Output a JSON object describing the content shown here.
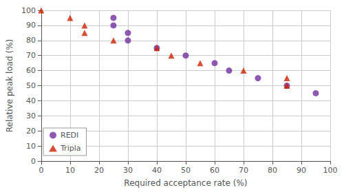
{
  "chart_data": {
    "type": "scatter",
    "xlabel": "Required acceptance rate (%)",
    "ylabel": "Relative peak load (%)",
    "series": [
      {
        "name": "REDI",
        "color": "#7030a0",
        "marker": "circle",
        "x": [
          25,
          25,
          30,
          30,
          40,
          50,
          60,
          65,
          75,
          85,
          95
        ],
        "values": [
          95,
          90,
          85,
          80,
          75,
          70,
          65,
          60,
          55,
          50,
          45
        ]
      },
      {
        "name": "Tripla",
        "color": "#cc2200",
        "marker": "triangle",
        "x": [
          0,
          10,
          15,
          15,
          25,
          40,
          45,
          55,
          70,
          85,
          85
        ],
        "values": [
          100,
          95,
          90,
          85,
          80,
          75,
          70,
          65,
          60,
          55,
          50
        ]
      }
    ],
    "xlim": [
      0,
      100
    ],
    "ylim": [
      0,
      100
    ],
    "xticks": [
      0,
      10,
      20,
      30,
      40,
      50,
      60,
      70,
      80,
      90,
      100
    ],
    "yticks": [
      0,
      10,
      20,
      30,
      40,
      50,
      60,
      70,
      80,
      90,
      100
    ],
    "grid": true,
    "legend": "lower left"
  }
}
